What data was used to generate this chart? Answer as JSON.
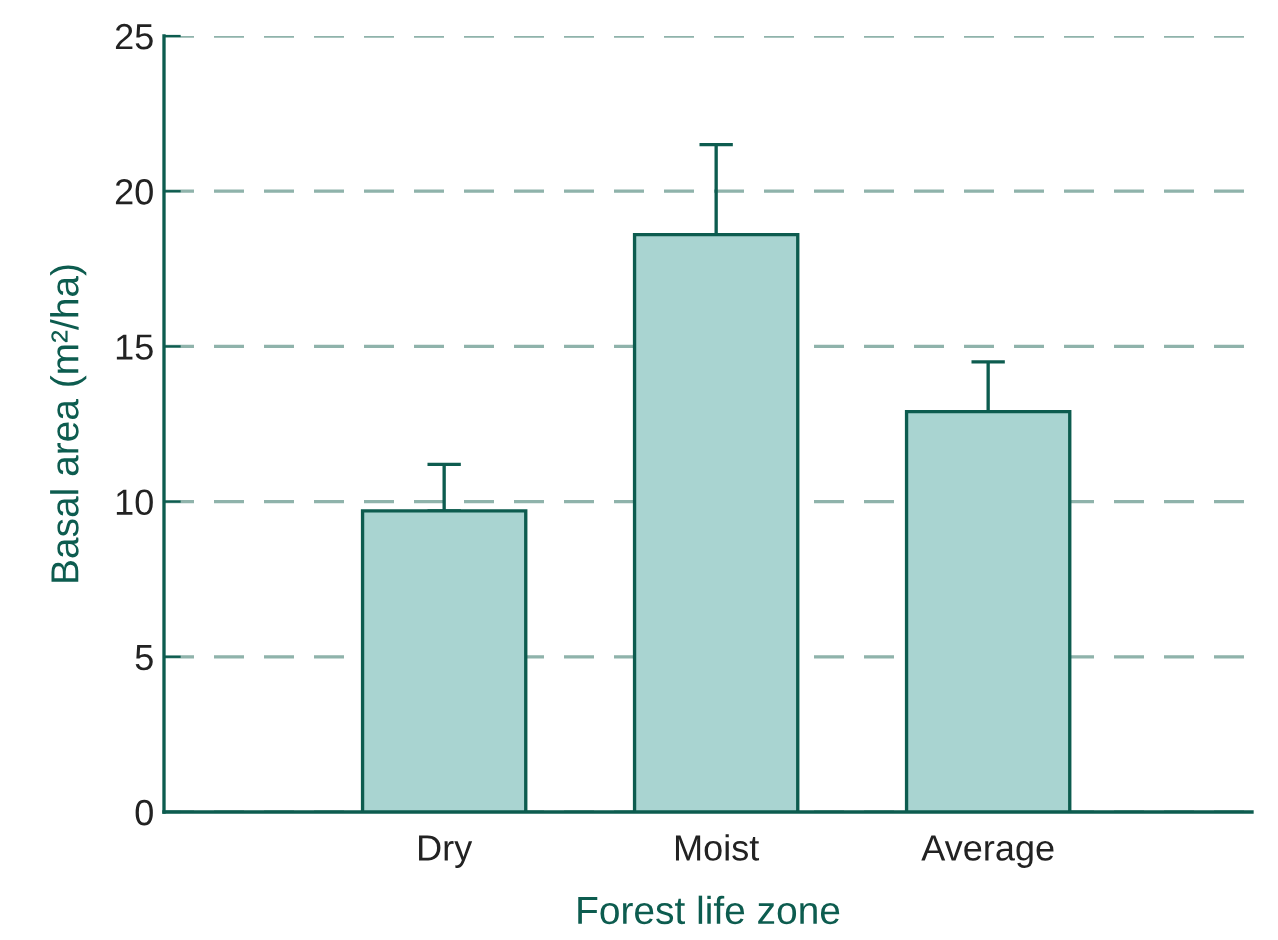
{
  "chart_data": {
    "type": "bar",
    "xlabel": "Forest life zone",
    "ylabel": "Basal area (m²/ha)",
    "categories": [
      "Dry",
      "Moist",
      "Average"
    ],
    "values": [
      9.7,
      18.6,
      12.9
    ],
    "errors": [
      [
        9.7,
        11.2
      ],
      [
        18.6,
        21.5
      ],
      [
        12.9,
        14.5
      ]
    ],
    "color": "#a9d4d1",
    "ylim": [
      0,
      25
    ],
    "yticks": [
      0,
      5,
      10,
      15,
      20,
      25
    ],
    "grid": "y"
  }
}
